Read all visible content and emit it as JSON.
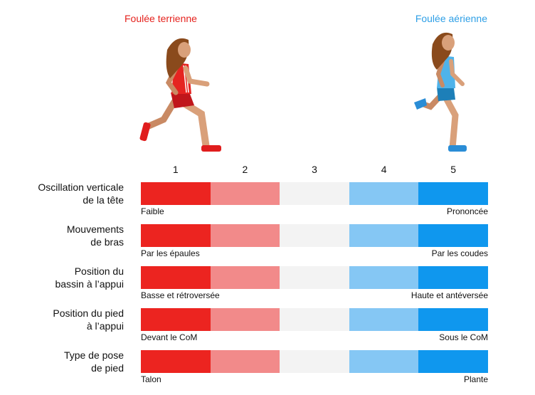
{
  "titles": {
    "left": "Foulée terrienne",
    "right": "Foulée aérienne",
    "left_color": "#e5221d",
    "right_color": "#2e9fe6"
  },
  "scale": [
    "1",
    "2",
    "3",
    "4",
    "5"
  ],
  "segment_colors": [
    "#ec2420",
    "#f28a8a",
    "#f3f3f3",
    "#85c7f4",
    "#0f97ee"
  ],
  "rows": [
    {
      "label_line1": "Oscillation verticale",
      "label_line2": "de la tête",
      "left": "Faible",
      "right": "Prononcée"
    },
    {
      "label_line1": "Mouvements",
      "label_line2": "de bras",
      "left": "Par les épaules",
      "right": "Par les coudes"
    },
    {
      "label_line1": "Position du",
      "label_line2": "bassin à l’appui",
      "left": "Basse et rétroversée",
      "right": "Haute et antéversée"
    },
    {
      "label_line1": "Position du pied",
      "label_line2": "à l’appui",
      "left": "Devant le CoM",
      "right": "Sous le CoM"
    },
    {
      "label_line1": "Type de pose",
      "label_line2": "de pied",
      "left": "Talon",
      "right": "Plante"
    }
  ]
}
